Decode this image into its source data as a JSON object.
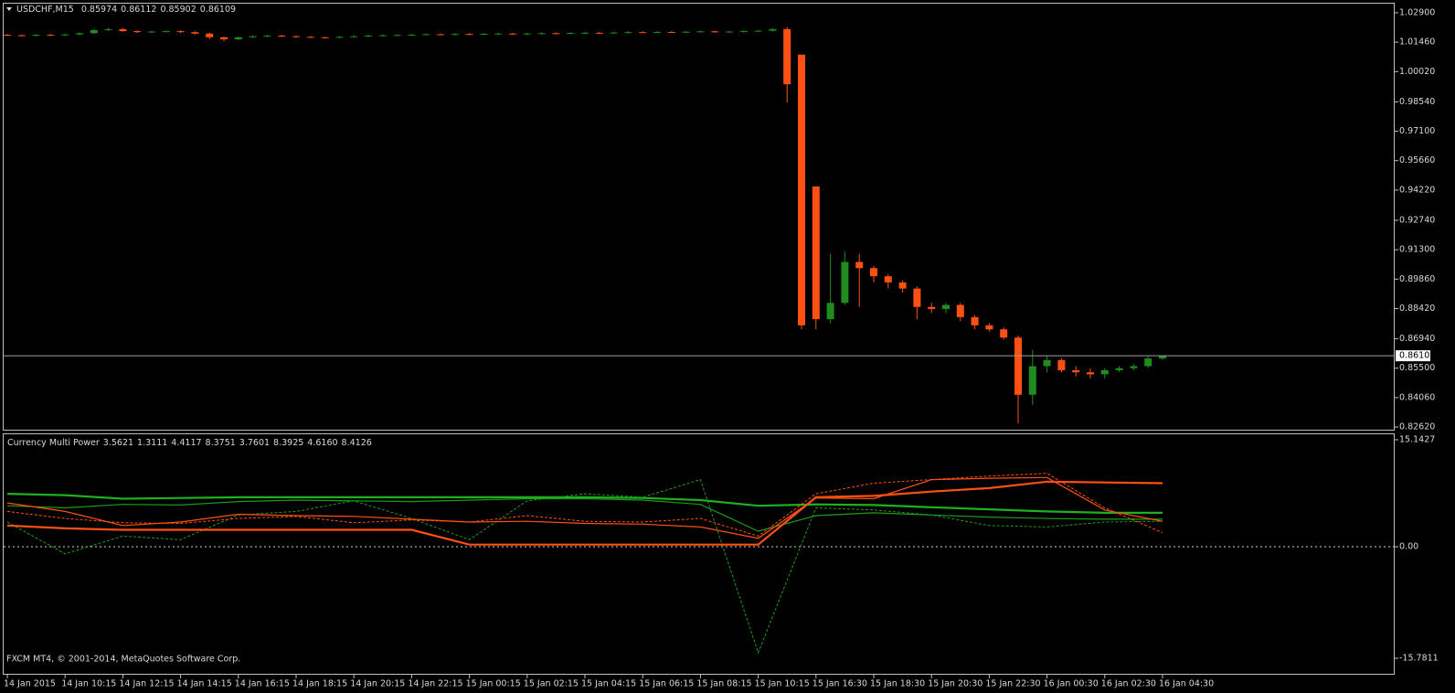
{
  "chart_data": [
    {
      "type": "candlestick",
      "title": "USDCHF,M15",
      "up_color": "#1e8c1e",
      "down_color": "#ff5014",
      "ylim": [
        0.8249,
        1.0339
      ],
      "yticks": [
        {
          "value": 1.029,
          "label": "1.02900"
        },
        {
          "value": 1.0146,
          "label": "1.01460"
        },
        {
          "value": 1.0002,
          "label": "1.00020"
        },
        {
          "value": 0.9854,
          "label": "0.98540"
        },
        {
          "value": 0.971,
          "label": "0.97100"
        },
        {
          "value": 0.9566,
          "label": "0.95660"
        },
        {
          "value": 0.9422,
          "label": "0.94220"
        },
        {
          "value": 0.9274,
          "label": "0.92740"
        },
        {
          "value": 0.913,
          "label": "0.91300"
        },
        {
          "value": 0.8986,
          "label": "0.89860"
        },
        {
          "value": 0.8842,
          "label": "0.88420"
        },
        {
          "value": 0.8694,
          "label": "0.86940"
        },
        {
          "value": 0.855,
          "label": "0.85500"
        },
        {
          "value": 0.8406,
          "label": "0.84060"
        },
        {
          "value": 0.8262,
          "label": "0.82620"
        }
      ],
      "xticks": [
        {
          "value": 0,
          "label": "14 Jan 2015"
        },
        {
          "value": 4,
          "label": "14 Jan 10:15"
        },
        {
          "value": 8,
          "label": "14 Jan 12:15"
        },
        {
          "value": 12,
          "label": "14 Jan 14:15"
        },
        {
          "value": 16,
          "label": "14 Jan 16:15"
        },
        {
          "value": 20,
          "label": "14 Jan 18:15"
        },
        {
          "value": 24,
          "label": "14 Jan 20:15"
        },
        {
          "value": 28,
          "label": "14 Jan 22:15"
        },
        {
          "value": 32,
          "label": "15 Jan 00:15"
        },
        {
          "value": 36,
          "label": "15 Jan 02:15"
        },
        {
          "value": 40,
          "label": "15 Jan 04:15"
        },
        {
          "value": 44,
          "label": "15 Jan 06:15"
        },
        {
          "value": 48,
          "label": "15 Jan 08:15"
        },
        {
          "value": 52,
          "label": "15 Jan 10:15"
        },
        {
          "value": 56,
          "label": "15 Jan 16:30"
        },
        {
          "value": 60,
          "label": "15 Jan 18:30"
        },
        {
          "value": 64,
          "label": "15 Jan 20:30"
        },
        {
          "value": 68,
          "label": "15 Jan 22:30"
        },
        {
          "value": 72,
          "label": "16 Jan 00:30"
        },
        {
          "value": 76,
          "label": "16 Jan 02:30"
        },
        {
          "value": 80,
          "label": "16 Jan 04:30"
        }
      ],
      "candles": [
        [
          1.0182,
          1.0186,
          1.0176,
          1.018
        ],
        [
          1.018,
          1.0184,
          1.0174,
          1.0178
        ],
        [
          1.0178,
          1.0186,
          1.0174,
          1.0182
        ],
        [
          1.0182,
          1.0186,
          1.0176,
          1.018
        ],
        [
          1.018,
          1.0188,
          1.0176,
          1.0184
        ],
        [
          1.0184,
          1.0194,
          1.018,
          1.019
        ],
        [
          1.019,
          1.0212,
          1.0186,
          1.0205
        ],
        [
          1.0205,
          1.0216,
          1.0201,
          1.021
        ],
        [
          1.021,
          1.0214,
          1.0196,
          1.02
        ],
        [
          1.02,
          1.0204,
          1.0191,
          1.0195
        ],
        [
          1.0195,
          1.0202,
          1.0191,
          1.0198
        ],
        [
          1.0198,
          1.0204,
          1.0194,
          1.02
        ],
        [
          1.02,
          1.0204,
          1.0191,
          1.0195
        ],
        [
          1.0195,
          1.0199,
          1.0184,
          1.0188
        ],
        [
          1.0188,
          1.0192,
          1.016,
          1.017
        ],
        [
          1.017,
          1.0174,
          1.015,
          1.016
        ],
        [
          1.016,
          1.0174,
          1.0156,
          1.017
        ],
        [
          1.017,
          1.0179,
          1.0166,
          1.0175
        ],
        [
          1.0175,
          1.0182,
          1.0171,
          1.0178
        ],
        [
          1.0178,
          1.0182,
          1.0171,
          1.0175
        ],
        [
          1.0175,
          1.0179,
          1.0168,
          1.0172
        ],
        [
          1.0172,
          1.0176,
          1.0166,
          1.017
        ],
        [
          1.017,
          1.0174,
          1.0164,
          1.0168
        ],
        [
          1.0168,
          1.0176,
          1.0164,
          1.0172
        ],
        [
          1.0172,
          1.0179,
          1.0168,
          1.0175
        ],
        [
          1.0175,
          1.0182,
          1.0171,
          1.0178
        ],
        [
          1.0178,
          1.0184,
          1.0174,
          1.018
        ],
        [
          1.018,
          1.0185,
          1.0176,
          1.0181
        ],
        [
          1.0181,
          1.0187,
          1.0177,
          1.0183
        ],
        [
          1.0183,
          1.0189,
          1.0179,
          1.0185
        ],
        [
          1.0185,
          1.0189,
          1.018,
          1.0184
        ],
        [
          1.0184,
          1.019,
          1.018,
          1.0186
        ],
        [
          1.0186,
          1.019,
          1.0181,
          1.0185
        ],
        [
          1.0185,
          1.0191,
          1.0181,
          1.0187
        ],
        [
          1.0187,
          1.0192,
          1.0183,
          1.0188
        ],
        [
          1.0188,
          1.0192,
          1.0182,
          1.0186
        ],
        [
          1.0186,
          1.0192,
          1.0182,
          1.0188
        ],
        [
          1.0188,
          1.0194,
          1.0184,
          1.019
        ],
        [
          1.019,
          1.0194,
          1.0185,
          1.0189
        ],
        [
          1.0189,
          1.0195,
          1.0185,
          1.0191
        ],
        [
          1.0191,
          1.0196,
          1.0187,
          1.0192
        ],
        [
          1.0192,
          1.0196,
          1.0187,
          1.0191
        ],
        [
          1.0191,
          1.0197,
          1.0187,
          1.0193
        ],
        [
          1.0193,
          1.0199,
          1.0189,
          1.0195
        ],
        [
          1.0195,
          1.0199,
          1.019,
          1.0194
        ],
        [
          1.0194,
          1.02,
          1.019,
          1.0196
        ],
        [
          1.0196,
          1.02,
          1.0191,
          1.0195
        ],
        [
          1.0195,
          1.0201,
          1.0191,
          1.0197
        ],
        [
          1.0197,
          1.0203,
          1.0193,
          1.0199
        ],
        [
          1.0199,
          1.0203,
          1.0192,
          1.0196
        ],
        [
          1.0196,
          1.0202,
          1.0192,
          1.0198
        ],
        [
          1.0198,
          1.0204,
          1.0194,
          1.02
        ],
        [
          1.02,
          1.0206,
          1.0196,
          1.0202
        ],
        [
          1.0202,
          1.0214,
          1.0198,
          1.021
        ],
        [
          1.021,
          1.022,
          0.985,
          0.994
        ],
        [
          1.0085,
          1.0085,
          0.874,
          0.876
        ],
        [
          0.944,
          0.944,
          0.874,
          0.879
        ],
        [
          0.879,
          0.911,
          0.877,
          0.887
        ],
        [
          0.887,
          0.912,
          0.886,
          0.907
        ],
        [
          0.907,
          0.911,
          0.885,
          0.904
        ],
        [
          0.904,
          0.905,
          0.897,
          0.9
        ],
        [
          0.9,
          0.901,
          0.894,
          0.897
        ],
        [
          0.897,
          0.898,
          0.892,
          0.894
        ],
        [
          0.894,
          0.895,
          0.879,
          0.885
        ],
        [
          0.885,
          0.887,
          0.882,
          0.884
        ],
        [
          0.884,
          0.887,
          0.882,
          0.886
        ],
        [
          0.886,
          0.887,
          0.878,
          0.88
        ],
        [
          0.88,
          0.881,
          0.874,
          0.876
        ],
        [
          0.876,
          0.877,
          0.873,
          0.874
        ],
        [
          0.874,
          0.875,
          0.869,
          0.87
        ],
        [
          0.87,
          0.871,
          0.828,
          0.842
        ],
        [
          0.842,
          0.864,
          0.837,
          0.856
        ],
        [
          0.856,
          0.861,
          0.853,
          0.859
        ],
        [
          0.859,
          0.86,
          0.853,
          0.854
        ],
        [
          0.854,
          0.856,
          0.851,
          0.853
        ],
        [
          0.853,
          0.855,
          0.85,
          0.852
        ],
        [
          0.852,
          0.855,
          0.85,
          0.854
        ],
        [
          0.854,
          0.856,
          0.853,
          0.855
        ],
        [
          0.855,
          0.857,
          0.854,
          0.856
        ],
        [
          0.856,
          0.861,
          0.855,
          0.85974
        ],
        [
          0.85974,
          0.86112,
          0.85902,
          0.86109
        ]
      ]
    },
    {
      "type": "line",
      "title": "Currency Multi Power",
      "header_values": [
        3.5621,
        1.3111,
        4.4117,
        8.3751,
        3.7601,
        8.3925,
        {
          "value": 4.616,
          "label": "4.6160"
        },
        8.4126
      ],
      "ylim": [
        -15.7811,
        15.1427
      ],
      "yticks": [
        15.1427,
        {
          "value": 0,
          "label": "0.00"
        },
        -15.7811
      ],
      "zero_line": true,
      "x": [
        0,
        4,
        8,
        12,
        16,
        20,
        24,
        28,
        32,
        36,
        40,
        44,
        48,
        52,
        56,
        60,
        64,
        68,
        72,
        76,
        80
      ],
      "series": [
        {
          "color": "#1fb01f",
          "width": 2.2,
          "dashed": false,
          "values": [
            7.5,
            7.3,
            6.8,
            6.9,
            7.0,
            7.0,
            7.0,
            7.0,
            7.0,
            7.0,
            7.0,
            6.9,
            6.6,
            5.8,
            6.0,
            5.9,
            5.6,
            5.3,
            5.0,
            4.8,
            4.8
          ]
        },
        {
          "color": "#1a9c1a",
          "width": 1.2,
          "dashed": false,
          "values": [
            5.8,
            5.5,
            6.0,
            5.9,
            6.4,
            6.6,
            6.5,
            6.4,
            6.6,
            6.8,
            6.8,
            6.6,
            6.0,
            2.2,
            4.4,
            4.8,
            4.5,
            4.2,
            4.0,
            3.9,
            3.9
          ]
        },
        {
          "color": "#1a9c1a",
          "width": 1,
          "dashed": true,
          "values": [
            3.5,
            -1.0,
            1.5,
            1.0,
            4.5,
            5.0,
            6.5,
            4.0,
            1.0,
            6.5,
            7.5,
            7.0,
            9.5,
            -15.0,
            5.5,
            5.2,
            4.5,
            3.0,
            2.8,
            3.5,
            3.6
          ]
        },
        {
          "color": "#ff5014",
          "width": 2.2,
          "dashed": false,
          "values": [
            3.0,
            2.6,
            2.4,
            2.4,
            2.4,
            2.4,
            2.4,
            2.4,
            0.3,
            0.3,
            0.3,
            0.3,
            0.3,
            0.3,
            7.0,
            7.2,
            7.8,
            8.3,
            9.2,
            9.1,
            9.0
          ]
        },
        {
          "color": "#ff5014",
          "width": 1.2,
          "dashed": false,
          "values": [
            6.2,
            5.0,
            3.0,
            3.5,
            4.6,
            4.4,
            4.3,
            3.9,
            3.5,
            3.6,
            3.3,
            3.2,
            2.8,
            1.2,
            6.9,
            6.8,
            9.5,
            9.7,
            9.8,
            5.2,
            3.6
          ]
        },
        {
          "color": "#ff5014",
          "width": 1,
          "dashed": true,
          "values": [
            5.0,
            4.0,
            3.4,
            3.3,
            4.0,
            4.3,
            3.4,
            3.8,
            3.5,
            4.4,
            3.6,
            3.5,
            4.0,
            1.5,
            7.5,
            9.0,
            9.5,
            10.0,
            10.4,
            5.5,
            2.0
          ]
        }
      ]
    }
  ],
  "footer": "FXCM MT4, © 2001-2014, MetaQuotes Software Corp."
}
